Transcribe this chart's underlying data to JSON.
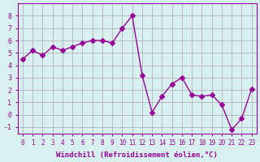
{
  "x": [
    0,
    1,
    2,
    3,
    4,
    5,
    6,
    7,
    8,
    9,
    10,
    11,
    12,
    13,
    14,
    15,
    16,
    17,
    18,
    19,
    20,
    21,
    22,
    23
  ],
  "y": [
    4.5,
    5.2,
    4.8,
    5.5,
    5.2,
    5.5,
    5.8,
    6.0,
    6.0,
    5.8,
    7.0,
    8.0,
    3.2,
    0.2,
    1.5,
    2.5,
    3.0,
    1.6,
    1.5,
    1.6,
    0.8,
    -1.2,
    -0.3,
    2.1
  ],
  "line_color": "#990099",
  "marker": "D",
  "marker_size": 3,
  "bg_color": "#d8f0f0",
  "grid_color": "#aaaaaa",
  "xlabel": "Windchill (Refroidissement éolien,°C)",
  "ylabel": "",
  "ylim": [
    -1.5,
    9.0
  ],
  "xlim": [
    -0.5,
    23.5
  ],
  "xticks": [
    0,
    1,
    2,
    3,
    4,
    5,
    6,
    7,
    8,
    9,
    10,
    11,
    12,
    13,
    14,
    15,
    16,
    17,
    18,
    19,
    20,
    21,
    22,
    23
  ],
  "yticks": [
    -1,
    0,
    1,
    2,
    3,
    4,
    5,
    6,
    7,
    8
  ],
  "title_color": "#990099",
  "axis_color": "#990099",
  "tick_color": "#990099"
}
